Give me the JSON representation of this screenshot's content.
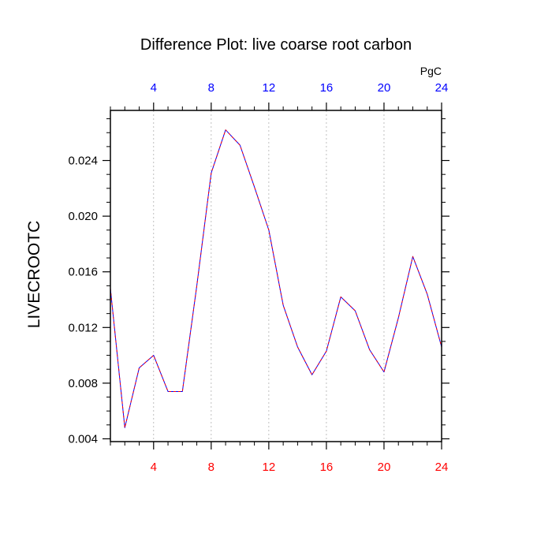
{
  "chart_data": {
    "type": "line",
    "title": "Difference Plot: live coarse root carbon",
    "units": "PgC",
    "ylabel": "LIVECROOTC",
    "xlabel": "",
    "xlim": [
      1,
      24
    ],
    "ylim": [
      0.0038,
      0.0276
    ],
    "x_ticks": [
      4,
      8,
      12,
      16,
      20,
      24
    ],
    "x_tick_labels": [
      "4",
      "8",
      "12",
      "16",
      "20",
      "24"
    ],
    "y_ticks": [
      0.004,
      0.008,
      0.012,
      0.016,
      0.02,
      0.024
    ],
    "y_tick_labels": [
      "0.004",
      "0.008",
      "0.012",
      "0.016",
      "0.020",
      "0.024"
    ],
    "vertical_grid": true,
    "colors": {
      "bottom_tick_labels": "#ff0000",
      "top_tick_labels": "#0000ff",
      "line_primary": "#0000ff",
      "line_secondary": "#ff0000",
      "grid": "#b0b0b0"
    },
    "series": [
      {
        "x": [
          1,
          2,
          3,
          4,
          5,
          6,
          7,
          8,
          9,
          10,
          11,
          12,
          13,
          14,
          15,
          16,
          17,
          18,
          19,
          20,
          21,
          22,
          23,
          24
        ],
        "values": [
          0.0148,
          0.0048,
          0.0091,
          0.01,
          0.0074,
          0.0074,
          0.015,
          0.0231,
          0.0262,
          0.0251,
          0.0221,
          0.019,
          0.0136,
          0.0106,
          0.0086,
          0.0103,
          0.0142,
          0.0132,
          0.0104,
          0.0088,
          0.0127,
          0.0171,
          0.0144,
          0.0106
        ]
      }
    ]
  }
}
